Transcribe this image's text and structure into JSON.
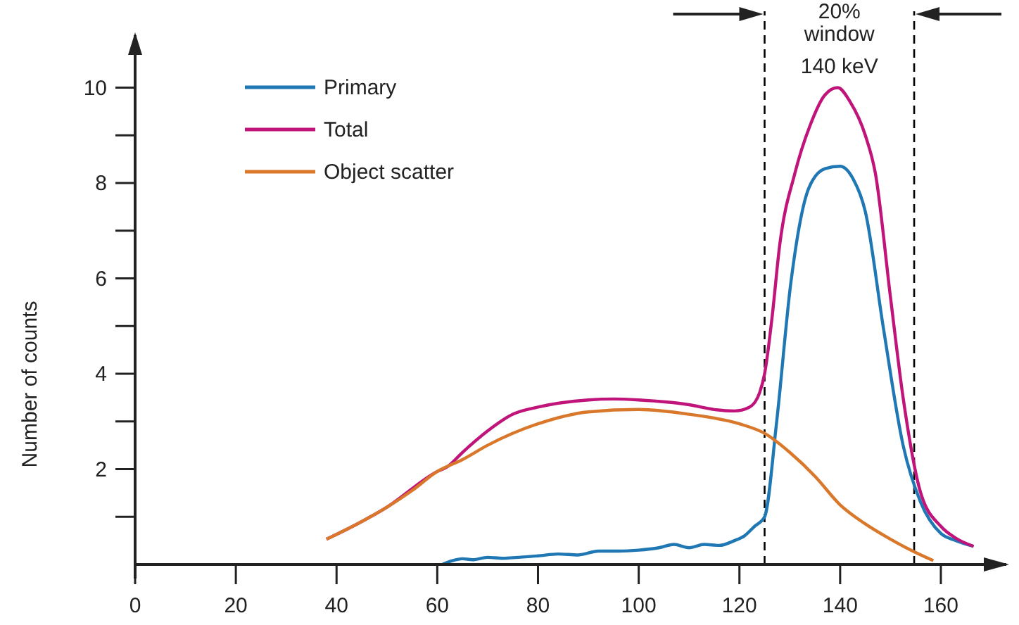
{
  "chart_data": {
    "type": "line",
    "ylabel": "Number of counts",
    "xlim": [
      0,
      173
    ],
    "ylim": [
      0,
      11.1
    ],
    "xticks": [
      0,
      20,
      40,
      60,
      80,
      100,
      120,
      140,
      160
    ],
    "yticks": [
      {
        "value": 1,
        "label": null
      },
      2,
      {
        "value": 3,
        "label": null
      },
      4,
      {
        "value": 5,
        "label": null
      },
      6,
      {
        "value": 7,
        "label": null
      },
      8,
      {
        "value": 9,
        "label": null
      },
      10
    ],
    "grid": false,
    "legend": "top left",
    "line_style": "solid",
    "ref_lines": [
      {
        "axis": "x",
        "value": 125,
        "color": "#000000",
        "line_style": "dashed"
      },
      {
        "axis": "x",
        "value": 154.7,
        "color": "#000000",
        "line_style": "dashed"
      }
    ],
    "annotations": [
      "20%\nwindow",
      "140 keV"
    ],
    "series": [
      {
        "name": "Primary",
        "color": "#1f77b4",
        "x": [
          61,
          63,
          65,
          67,
          70,
          73,
          76,
          80,
          84,
          88,
          92,
          96,
          100,
          104,
          107,
          110,
          113,
          116,
          119,
          121,
          123,
          125,
          127.4,
          130.2,
          133.8,
          137,
          140,
          142.5,
          145,
          148.6,
          152.5,
          156,
          160,
          163,
          166.5
        ],
        "values": [
          0,
          0.08,
          0.12,
          0.1,
          0.15,
          0.13,
          0.15,
          0.18,
          0.22,
          0.2,
          0.28,
          0.28,
          0.3,
          0.35,
          0.42,
          0.35,
          0.42,
          0.4,
          0.5,
          0.6,
          0.8,
          1.0,
          3.0,
          5.9,
          7.9,
          8.3,
          8.35,
          8.1,
          7.4,
          4.95,
          2.5,
          1.3,
          0.65,
          0.5,
          0.38
        ]
      },
      {
        "name": "Total",
        "color": "#c0147a",
        "x": [
          38,
          50,
          60,
          62,
          65,
          70,
          75,
          80,
          90,
          95,
          100,
          110,
          115,
          119,
          122,
          124,
          125,
          126.5,
          128,
          131,
          134,
          137,
          139.5,
          142,
          145,
          147,
          150,
          152.5,
          156,
          160,
          163,
          166.5
        ],
        "values": [
          0.53,
          1.2,
          1.95,
          2.05,
          2.35,
          2.8,
          3.15,
          3.3,
          3.45,
          3.47,
          3.45,
          3.35,
          3.25,
          3.22,
          3.3,
          3.6,
          4.0,
          5.2,
          6.7,
          8.2,
          9.2,
          9.85,
          10.0,
          9.7,
          9.0,
          8.2,
          5.6,
          3.5,
          1.5,
          0.8,
          0.55,
          0.38
        ]
      },
      {
        "name": "Object scatter",
        "color": "#d9782b",
        "x": [
          38,
          45,
          50,
          55,
          60,
          65,
          70,
          80,
          90,
          100,
          110,
          120,
          125,
          130,
          135,
          140,
          145,
          150,
          155,
          158.5
        ],
        "values": [
          0.53,
          0.9,
          1.2,
          1.55,
          1.95,
          2.2,
          2.5,
          2.95,
          3.2,
          3.25,
          3.15,
          2.95,
          2.75,
          2.35,
          1.85,
          1.25,
          0.85,
          0.53,
          0.25,
          0.08
        ]
      }
    ]
  }
}
